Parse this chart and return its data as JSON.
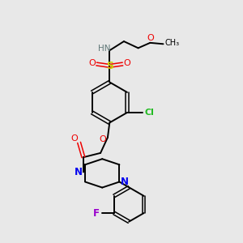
{
  "bg_color": "#e8e8e8",
  "atom_colors": {
    "C": "#000000",
    "H": "#607878",
    "N": "#0000ee",
    "O": "#ee0000",
    "S": "#cccc00",
    "Cl": "#22bb22",
    "F": "#9900cc"
  },
  "figsize": [
    3.0,
    3.0
  ],
  "dpi": 100,
  "xlim": [
    0,
    10
  ],
  "ylim": [
    0,
    10
  ]
}
